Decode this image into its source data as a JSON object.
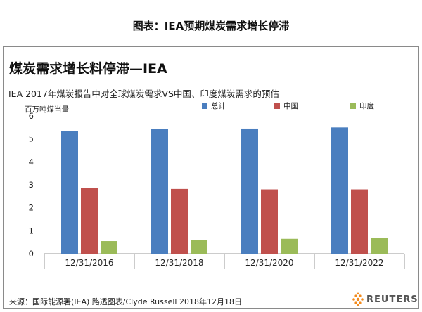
{
  "page_title": "图表：IEA预期煤炭需求增长停滞",
  "card": {
    "title": "煤炭需求增长料停滞—IEA",
    "subtitle": "IEA 2017年煤炭报告中对全球煤炭需求VS中国、印度煤炭需求的预估",
    "unit": "百万吨煤当量",
    "source": "来源：国际能源署(IEA)   路透图表/Clyde Russell 2018年12月18日",
    "logo_text": "REUTERS"
  },
  "chart_data": {
    "type": "bar",
    "title": "煤炭需求增长料停滞—IEA",
    "subtitle": "IEA 2017年煤炭报告中对全球煤炭需求VS中国、印度煤炭需求的预估",
    "ylabel": "百万吨煤当量",
    "categories": [
      "12/31/2016",
      "12/31/2018",
      "12/31/2020",
      "12/31/2022"
    ],
    "y_ticks": [
      0,
      1,
      2,
      3,
      4,
      5,
      6
    ],
    "ylim": [
      0,
      6
    ],
    "grid": false,
    "legend_position": "top",
    "series": [
      {
        "name": "总计",
        "color": "#4a7ebf",
        "values": [
          5.35,
          5.42,
          5.45,
          5.5
        ]
      },
      {
        "name": "中国",
        "color": "#c0504d",
        "values": [
          2.85,
          2.82,
          2.8,
          2.8
        ]
      },
      {
        "name": "印度",
        "color": "#9bbb59",
        "values": [
          0.55,
          0.6,
          0.65,
          0.7
        ]
      }
    ]
  }
}
